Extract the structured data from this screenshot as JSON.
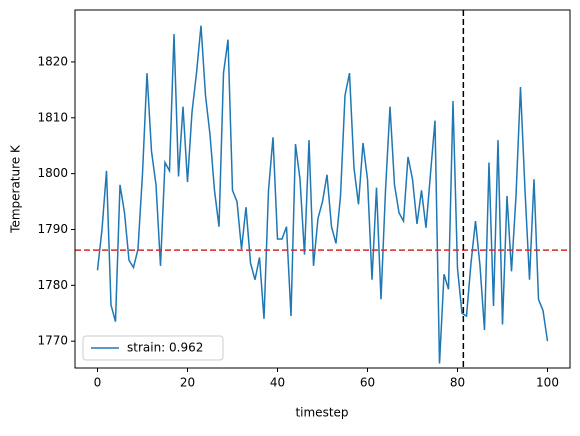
{
  "chart_data": {
    "type": "line",
    "x_label": "timestep",
    "y_label": "Temperature K",
    "x": [
      0,
      1,
      2,
      3,
      4,
      5,
      6,
      7,
      8,
      9,
      10,
      11,
      12,
      13,
      14,
      15,
      16,
      17,
      18,
      19,
      20,
      21,
      22,
      23,
      24,
      25,
      26,
      27,
      28,
      29,
      30,
      31,
      32,
      33,
      34,
      35,
      36,
      37,
      38,
      39,
      40,
      41,
      42,
      43,
      44,
      45,
      46,
      47,
      48,
      49,
      50,
      51,
      52,
      53,
      54,
      55,
      56,
      57,
      58,
      59,
      60,
      61,
      62,
      63,
      64,
      65,
      66,
      67,
      68,
      69,
      70,
      71,
      72,
      73,
      74,
      75,
      76,
      77,
      78,
      79,
      80,
      81,
      82,
      83,
      84,
      85,
      86,
      87,
      88,
      89,
      90,
      91,
      92,
      93,
      94,
      95,
      96,
      97,
      98,
      99,
      100
    ],
    "series": [
      {
        "name": "strain: 0.962",
        "color": "#1f77b4",
        "values": [
          1782.7,
          1790,
          1800.5,
          1776.5,
          1773.5,
          1798,
          1793,
          1784.5,
          1783.2,
          1786.5,
          1800,
          1818,
          1804,
          1798,
          1783.5,
          1802,
          1800.5,
          1825,
          1799.5,
          1812,
          1798.5,
          1811,
          1818,
          1826.5,
          1814,
          1807,
          1797,
          1790.5,
          1818,
          1824,
          1797,
          1795,
          1786.5,
          1794,
          1784,
          1781,
          1785,
          1774,
          1797,
          1806.5,
          1788.3,
          1788.3,
          1790.5,
          1774.5,
          1805.3,
          1799,
          1785.5,
          1806,
          1783.5,
          1792,
          1795,
          1799.8,
          1790.5,
          1787.5,
          1796,
          1814,
          1818,
          1801,
          1794.5,
          1805.5,
          1799,
          1781,
          1797.5,
          1777.5,
          1797,
          1812,
          1798,
          1793,
          1791.5,
          1803,
          1799,
          1791,
          1797,
          1790.3,
          1800,
          1809.5,
          1766,
          1782,
          1779.3,
          1813,
          1783,
          1775,
          1774.5,
          1784,
          1791.5,
          1783.5,
          1772,
          1802,
          1776.3,
          1806,
          1773,
          1796,
          1782.5,
          1796,
          1815.5,
          1797,
          1781,
          1799,
          1777.5,
          1775.5,
          1770
        ]
      }
    ],
    "hline": {
      "value": 1786.3,
      "color": "#d62728"
    },
    "vline": {
      "value": 81.3,
      "color": "#000000"
    },
    "xlim": [
      -5,
      105
    ],
    "xticks": [
      0,
      20,
      40,
      60,
      80,
      100
    ],
    "ylim": [
      1765.2,
      1829.3
    ],
    "yticks": [
      1770,
      1780,
      1790,
      1800,
      1810,
      1820
    ],
    "legend": "lower left"
  }
}
